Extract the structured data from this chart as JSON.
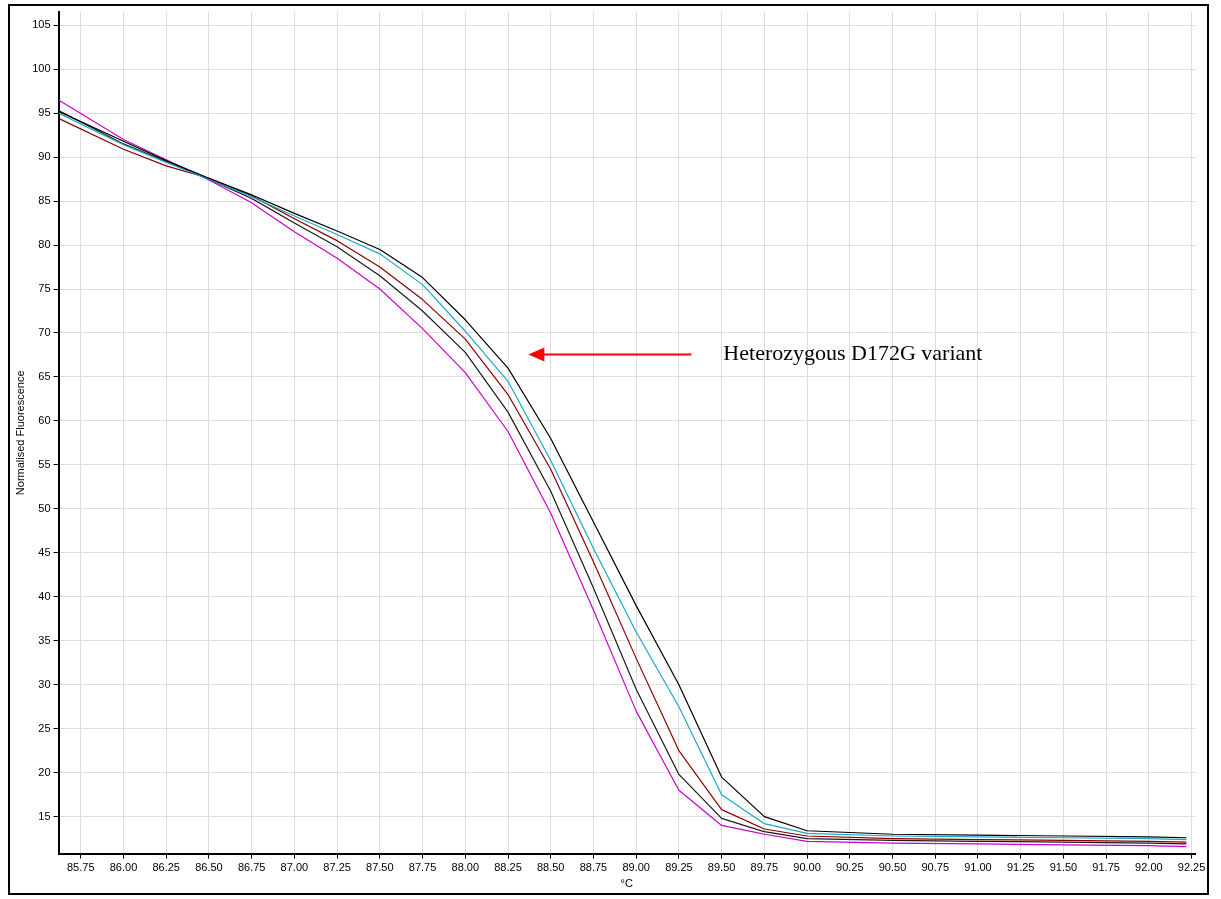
{
  "chart_data": {
    "type": "line",
    "xlabel": "°C",
    "ylabel": "Normalised Fluorescence",
    "x": [
      85.62,
      86,
      86.25,
      86.5,
      86.75,
      87,
      87.25,
      87.5,
      87.75,
      88,
      88.25,
      88.5,
      88.75,
      89,
      89.25,
      89.5,
      89.75,
      90,
      90.5,
      91,
      91.5,
      92,
      92.22
    ],
    "series": [
      {
        "color": "#000000",
        "values": [
          95.2,
          91.8,
          89.6,
          87.6,
          85.7,
          83.6,
          81.6,
          79.5,
          76.3,
          71.5,
          66.0,
          58.0,
          48.5,
          39.0,
          30.0,
          19.5,
          15.0,
          13.4,
          13.0,
          12.9,
          12.8,
          12.7,
          12.6
        ]
      },
      {
        "color": "#1ca8c8",
        "values": [
          95.0,
          91.4,
          89.4,
          87.5,
          85.5,
          83.3,
          81.2,
          79.0,
          75.5,
          70.2,
          64.5,
          55.5,
          45.5,
          36.0,
          27.5,
          17.5,
          14.2,
          13.1,
          12.8,
          12.7,
          12.6,
          12.5,
          12.4
        ]
      },
      {
        "color": "#8b0000",
        "values": [
          94.4,
          90.9,
          89.0,
          87.6,
          85.6,
          83.0,
          80.5,
          77.5,
          73.8,
          69.3,
          63.0,
          54.5,
          44.0,
          33.0,
          22.5,
          15.8,
          13.6,
          12.8,
          12.5,
          12.4,
          12.3,
          12.2,
          12.1
        ]
      },
      {
        "color": "#1a1a1a",
        "values": [
          95.3,
          91.5,
          89.5,
          87.5,
          85.3,
          82.5,
          79.8,
          76.5,
          72.5,
          67.8,
          61.0,
          52.0,
          41.0,
          29.5,
          19.8,
          14.8,
          13.3,
          12.5,
          12.3,
          12.2,
          12.1,
          12.0,
          11.9
        ]
      },
      {
        "color": "#cc00cc",
        "values": [
          96.5,
          92.0,
          89.7,
          87.4,
          84.8,
          81.5,
          78.5,
          75.0,
          70.5,
          65.5,
          58.8,
          49.5,
          38.5,
          27.0,
          18.0,
          14.0,
          13.0,
          12.2,
          12.0,
          11.9,
          11.8,
          11.7,
          11.6
        ]
      }
    ],
    "xlim": [
      85.62,
      92.27
    ],
    "ylim": [
      10.8,
      106.5
    ],
    "xticks": [
      85.75,
      {
        "value": 86,
        "label": "86.00"
      },
      86.25,
      {
        "value": 86.5,
        "label": "86.50"
      },
      86.75,
      {
        "value": 87,
        "label": "87.00"
      },
      87.25,
      {
        "value": 87.5,
        "label": "87.50"
      },
      87.75,
      {
        "value": 88,
        "label": "88.00"
      },
      88.25,
      {
        "value": 88.5,
        "label": "88.50"
      },
      88.75,
      {
        "value": 89,
        "label": "89.00"
      },
      89.25,
      {
        "value": 89.5,
        "label": "89.50"
      },
      89.75,
      {
        "value": 90,
        "label": "90.00"
      },
      90.25,
      {
        "value": 90.5,
        "label": "90.50"
      },
      90.75,
      {
        "value": 91,
        "label": "91.00"
      },
      91.25,
      {
        "value": 91.5,
        "label": "91.50"
      },
      91.75,
      {
        "value": 92,
        "label": "92.00"
      },
      92.25
    ],
    "yticks": [
      15,
      20,
      25,
      30,
      35,
      40,
      45,
      50,
      55,
      60,
      65,
      70,
      75,
      80,
      85,
      90,
      95,
      100,
      105
    ],
    "annotations": [
      "Heterozygous D172G variant"
    ],
    "grid": true,
    "legend": false,
    "marker": "none",
    "line_style": "solid"
  }
}
